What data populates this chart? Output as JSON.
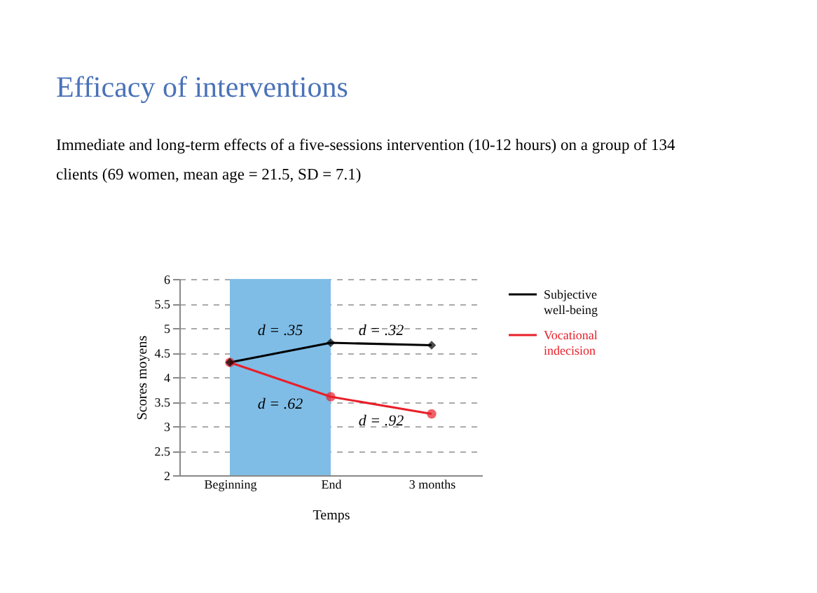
{
  "chart_data": {
    "type": "line",
    "title": "Efficacy of interventions",
    "subtitle": "Immediate and long-term effects of a five-sessions intervention (10-12 hours) on a group of 134 clients (69 women, mean age = 21.5, SD = 7.1)",
    "xlabel": "Temps",
    "ylabel": "Scores moyens",
    "categories": [
      "Beginning",
      "End",
      "3 months"
    ],
    "series": [
      {
        "name": "Subjective well-being",
        "color": "#000000",
        "marker": "diamond",
        "values": [
          4.3,
          4.7,
          4.65
        ]
      },
      {
        "name": "Vocational indecision",
        "color": "#e8202a",
        "marker": "circle",
        "values": [
          4.3,
          3.6,
          3.25
        ]
      }
    ],
    "ylim": [
      2,
      6
    ],
    "yticks": [
      2,
      2.5,
      3,
      3.5,
      4,
      4.5,
      5,
      5.5,
      6
    ],
    "grid": "y",
    "legend": "right",
    "line_style": "solid",
    "bands": [
      {
        "axis": "x",
        "from": "Beginning",
        "to": "End",
        "color": "#7fbde6"
      }
    ],
    "annotations": [
      "d = .35",
      "d = .32",
      "d = .62",
      "d = .92"
    ]
  }
}
